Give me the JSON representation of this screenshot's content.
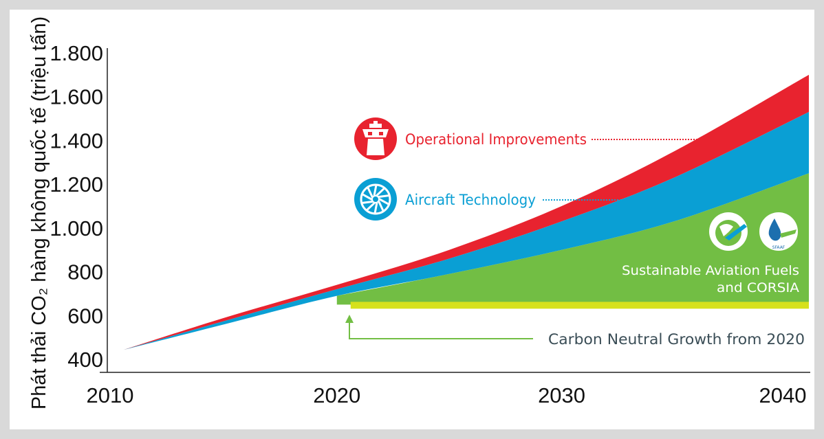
{
  "chart_data": {
    "type": "area",
    "title": "",
    "ylabel": "Phát thải CO₂ hàng không quốc tế (triệu tấn)",
    "xlabel": "",
    "xlim": [
      2010,
      2041
    ],
    "ylim": [
      400,
      1800
    ],
    "x_ticks": [
      "2010",
      "2020",
      "2030",
      "2040"
    ],
    "y_ticks": [
      "400",
      "600",
      "800",
      "1.000",
      "1.200",
      "1.400",
      "1.600",
      "1.800"
    ],
    "x": [
      2010.5,
      2015,
      2020,
      2025,
      2030,
      2035,
      2041
    ],
    "series": [
      {
        "name": "Operational Improvements",
        "color": "#e8232f",
        "upper": [
          443,
          590,
          740,
          900,
          1100,
          1350,
          1700
        ]
      },
      {
        "name": "Aircraft Technology",
        "color": "#0a9fd4",
        "upper": [
          443,
          575,
          720,
          860,
          1030,
          1230,
          1530
        ]
      },
      {
        "name": "Sustainable Aviation Fuels and CORSIA",
        "color": "#72be44",
        "upper": [
          443,
          560,
          690,
          790,
          900,
          1030,
          1250
        ]
      }
    ],
    "baseline": {
      "name": "Carbon Neutral Growth from 2020",
      "value": 650,
      "from": 2020,
      "color": "#d6e11c"
    },
    "annotations": {
      "operational": "Operational Improvements",
      "aircraft": "Aircraft Technology",
      "saf_line1": "Sustainable Aviation Fuels",
      "saf_line2": "and CORSIA",
      "cng": "Carbon Neutral Growth from 2020",
      "saf_logo_text": "SFAAF"
    },
    "colors": {
      "red": "#e8232f",
      "blue": "#0a9fd4",
      "green": "#72be44",
      "yellow": "#d6e11c",
      "label_gray": "#3a4d56"
    }
  }
}
